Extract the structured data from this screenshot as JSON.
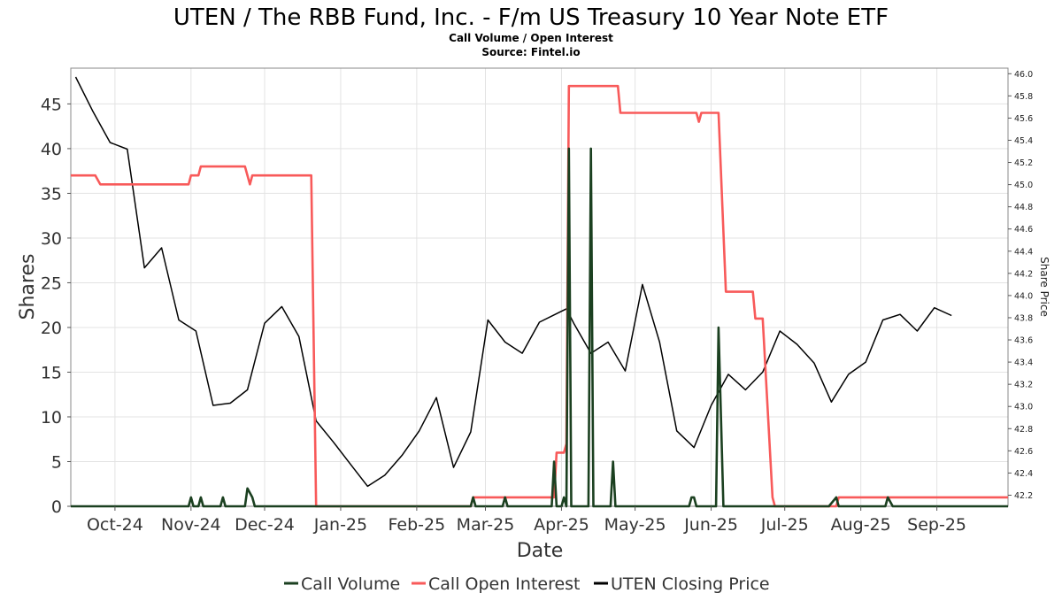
{
  "chart_data": {
    "type": "line",
    "title": "UTEN / The RBB Fund, Inc. - F/m US Treasury 10 Year Note ETF",
    "subtitle_1": "Call Volume / Open Interest",
    "subtitle_2": "Source: Fintel.io",
    "xlabel": "Date",
    "ylabel": "Shares",
    "y2label": "Share Price",
    "x_range": [
      "2024-09-13",
      "2025-09-30"
    ],
    "ylim": [
      0,
      49
    ],
    "y2lim": [
      42.1,
      46.05
    ],
    "y_ticks": [
      0,
      5,
      10,
      15,
      20,
      25,
      30,
      35,
      40,
      45
    ],
    "y2_ticks": [
      "42.2",
      "42.4",
      "42.6",
      "42.8",
      "43.0",
      "43.2",
      "43.4",
      "43.6",
      "43.8",
      "44.0",
      "44.2",
      "44.4",
      "44.6",
      "44.8",
      "45.0",
      "45.2",
      "45.4",
      "45.6",
      "45.8",
      "46.0"
    ],
    "x_ticks": [
      {
        "label": "Oct-24",
        "date": "2024-10-01"
      },
      {
        "label": "Nov-24",
        "date": "2024-11-01"
      },
      {
        "label": "Dec-24",
        "date": "2024-12-01"
      },
      {
        "label": "Jan-25",
        "date": "2025-01-01"
      },
      {
        "label": "Feb-25",
        "date": "2025-02-01"
      },
      {
        "label": "Mar-25",
        "date": "2025-03-01"
      },
      {
        "label": "Apr-25",
        "date": "2025-04-01"
      },
      {
        "label": "May-25",
        "date": "2025-05-01"
      },
      {
        "label": "Jun-25",
        "date": "2025-06-01"
      },
      {
        "label": "Jul-25",
        "date": "2025-07-01"
      },
      {
        "label": "Aug-25",
        "date": "2025-08-01"
      },
      {
        "label": "Sep-25",
        "date": "2025-09-01"
      }
    ],
    "grid": true,
    "legend_position": "bottom",
    "series": [
      {
        "name": "Call Volume",
        "axis": "left",
        "color": "#1b4020",
        "points": [
          [
            "2024-09-13",
            0
          ],
          [
            "2024-10-31",
            0
          ],
          [
            "2024-11-01",
            1
          ],
          [
            "2024-11-02",
            0
          ],
          [
            "2024-11-04",
            0
          ],
          [
            "2024-11-05",
            1
          ],
          [
            "2024-11-06",
            0
          ],
          [
            "2024-11-13",
            0
          ],
          [
            "2024-11-14",
            1
          ],
          [
            "2024-11-15",
            0
          ],
          [
            "2024-11-23",
            0
          ],
          [
            "2024-11-24",
            2
          ],
          [
            "2024-11-26",
            1
          ],
          [
            "2024-11-27",
            0
          ],
          [
            "2025-02-23",
            0
          ],
          [
            "2025-02-24",
            1
          ],
          [
            "2025-02-25",
            0
          ],
          [
            "2025-03-08",
            0
          ],
          [
            "2025-03-09",
            1
          ],
          [
            "2025-03-10",
            0
          ],
          [
            "2025-03-28",
            0
          ],
          [
            "2025-03-29",
            5
          ],
          [
            "2025-03-30",
            0
          ],
          [
            "2025-04-01",
            0
          ],
          [
            "2025-04-02",
            1
          ],
          [
            "2025-04-03",
            0
          ],
          [
            "2025-04-04",
            40
          ],
          [
            "2025-04-05",
            0
          ],
          [
            "2025-04-12",
            0
          ],
          [
            "2025-04-13",
            40
          ],
          [
            "2025-04-14",
            0
          ],
          [
            "2025-04-21",
            0
          ],
          [
            "2025-04-22",
            5
          ],
          [
            "2025-04-23",
            0
          ],
          [
            "2025-05-23",
            0
          ],
          [
            "2025-05-24",
            1
          ],
          [
            "2025-05-25",
            1
          ],
          [
            "2025-05-26",
            0
          ],
          [
            "2025-06-03",
            0
          ],
          [
            "2025-06-04",
            20
          ],
          [
            "2025-06-06",
            0
          ],
          [
            "2025-07-19",
            0
          ],
          [
            "2025-07-22",
            1
          ],
          [
            "2025-07-23",
            0
          ],
          [
            "2025-08-11",
            0
          ],
          [
            "2025-08-12",
            1
          ],
          [
            "2025-08-14",
            0
          ],
          [
            "2025-09-30",
            0
          ]
        ]
      },
      {
        "name": "Call Open Interest",
        "axis": "left",
        "color": "#f85a5a",
        "points": [
          [
            "2024-09-13",
            37
          ],
          [
            "2024-09-23",
            37
          ],
          [
            "2024-09-25",
            36
          ],
          [
            "2024-10-31",
            36
          ],
          [
            "2024-11-01",
            37
          ],
          [
            "2024-11-04",
            37
          ],
          [
            "2024-11-05",
            38
          ],
          [
            "2024-11-23",
            38
          ],
          [
            "2024-11-25",
            36
          ],
          [
            "2024-11-26",
            37
          ],
          [
            "2024-12-20",
            37
          ],
          [
            "2024-12-22",
            0
          ],
          [
            "2025-02-23",
            0
          ],
          [
            "2025-02-24",
            1
          ],
          [
            "2025-03-29",
            1
          ],
          [
            "2025-03-30",
            6
          ],
          [
            "2025-04-02",
            6
          ],
          [
            "2025-04-03",
            7
          ],
          [
            "2025-04-04",
            47
          ],
          [
            "2025-04-24",
            47
          ],
          [
            "2025-04-25",
            44
          ],
          [
            "2025-05-26",
            44
          ],
          [
            "2025-05-27",
            43
          ],
          [
            "2025-05-28",
            44
          ],
          [
            "2025-06-04",
            44
          ],
          [
            "2025-06-07",
            24
          ],
          [
            "2025-06-18",
            24
          ],
          [
            "2025-06-19",
            21
          ],
          [
            "2025-06-22",
            21
          ],
          [
            "2025-06-26",
            1
          ],
          [
            "2025-06-27",
            0
          ],
          [
            "2025-07-22",
            0
          ],
          [
            "2025-07-23",
            1
          ],
          [
            "2025-09-30",
            1
          ]
        ]
      },
      {
        "name": "UTEN Closing Price",
        "axis": "right",
        "color": "#000000",
        "points": [
          [
            "2024-09-15",
            45.97
          ],
          [
            "2024-09-22",
            45.66
          ],
          [
            "2024-09-29",
            45.38
          ],
          [
            "2024-10-06",
            45.32
          ],
          [
            "2024-10-13",
            44.25
          ],
          [
            "2024-10-20",
            44.43
          ],
          [
            "2024-10-27",
            43.78
          ],
          [
            "2024-11-03",
            43.68
          ],
          [
            "2024-11-10",
            43.01
          ],
          [
            "2024-11-17",
            43.03
          ],
          [
            "2024-11-24",
            43.15
          ],
          [
            "2024-12-01",
            43.75
          ],
          [
            "2024-12-08",
            43.9
          ],
          [
            "2024-12-15",
            43.63
          ],
          [
            "2024-12-22",
            42.87
          ],
          [
            "2024-12-29",
            42.68
          ],
          [
            "2025-01-05",
            42.48
          ],
          [
            "2025-01-12",
            42.28
          ],
          [
            "2025-01-19",
            42.38
          ],
          [
            "2025-01-26",
            42.56
          ],
          [
            "2025-02-02",
            42.78
          ],
          [
            "2025-02-09",
            43.08
          ],
          [
            "2025-02-16",
            42.45
          ],
          [
            "2025-02-23",
            42.77
          ],
          [
            "2025-03-02",
            43.78
          ],
          [
            "2025-03-09",
            43.58
          ],
          [
            "2025-03-16",
            43.48
          ],
          [
            "2025-03-23",
            43.76
          ],
          [
            "2025-04-03",
            43.88
          ],
          [
            "2025-04-06",
            43.75
          ],
          [
            "2025-04-13",
            43.48
          ],
          [
            "2025-04-20",
            43.58
          ],
          [
            "2025-04-27",
            43.32
          ],
          [
            "2025-05-04",
            44.1
          ],
          [
            "2025-05-11",
            43.58
          ],
          [
            "2025-05-18",
            42.78
          ],
          [
            "2025-05-25",
            42.63
          ],
          [
            "2025-06-01",
            43.01
          ],
          [
            "2025-06-08",
            43.29
          ],
          [
            "2025-06-15",
            43.15
          ],
          [
            "2025-06-22",
            43.31
          ],
          [
            "2025-06-29",
            43.68
          ],
          [
            "2025-07-06",
            43.56
          ],
          [
            "2025-07-13",
            43.39
          ],
          [
            "2025-07-20",
            43.04
          ],
          [
            "2025-07-27",
            43.29
          ],
          [
            "2025-08-03",
            43.4
          ],
          [
            "2025-08-10",
            43.78
          ],
          [
            "2025-08-17",
            43.83
          ],
          [
            "2025-08-24",
            43.68
          ],
          [
            "2025-08-31",
            43.89
          ],
          [
            "2025-09-07",
            43.82
          ]
        ]
      }
    ]
  }
}
